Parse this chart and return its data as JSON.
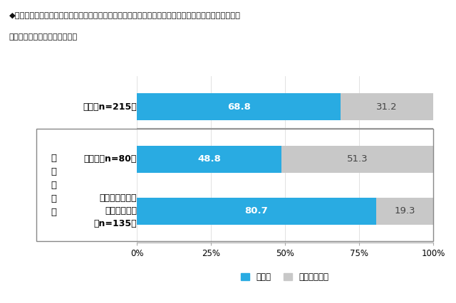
{
  "title_line1": "◆新型コロナウイルス感染症拡大防止のため、学校が臨時休業となってから、オンライン授業を受けたか",
  "title_line2": "［単一回答形式］　対象：学生",
  "cat0": "全体［n=215］",
  "cat1": "高校生［n=80］",
  "cat2_line1": "大学生・短大生",
  "cat2_line2": "・専門学校生",
  "cat2_line3": "［n=135］",
  "group_label_chars": [
    "学",
    "生",
    "区",
    "分",
    "別"
  ],
  "blue_values": [
    68.8,
    48.8,
    80.7
  ],
  "gray_values": [
    31.2,
    51.3,
    19.3
  ],
  "blue_color": "#29ABE2",
  "gray_color": "#C8C8C8",
  "legend_blue": "受けた",
  "legend_gray": "受けなかった",
  "bg_color": "#FFFFFF",
  "xlim": [
    0,
    100
  ],
  "xticks": [
    0,
    25,
    50,
    75,
    100
  ],
  "xticklabels": [
    "0%",
    "25%",
    "50%",
    "75%",
    "100%"
  ]
}
